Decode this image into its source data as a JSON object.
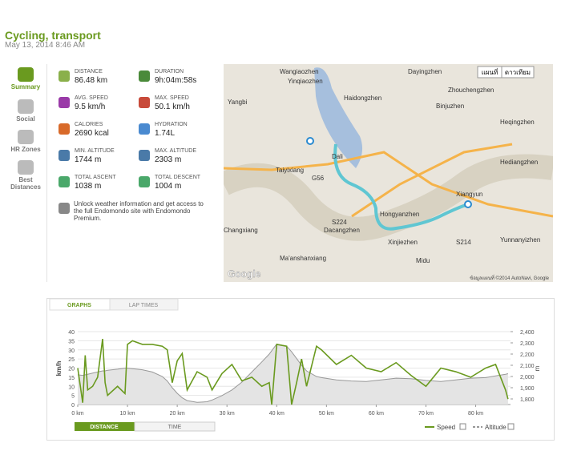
{
  "header": {
    "title": "Cycling, transport",
    "date": "May 13, 2014 8:46 AM"
  },
  "sidebar": [
    "Summary",
    "Social",
    "HR Zones",
    "Best Distances"
  ],
  "stats": [
    {
      "label": "DISTANCE",
      "value": "86.48 km"
    },
    {
      "label": "DURATION",
      "value": "9h:04m:58s"
    },
    {
      "label": "AVG. SPEED",
      "value": "9.5 km/h"
    },
    {
      "label": "MAX. SPEED",
      "value": "50.1 km/h"
    },
    {
      "label": "CALORIES",
      "value": "2690 kcal"
    },
    {
      "label": "HYDRATION",
      "value": "1.74L"
    },
    {
      "label": "MIN. ALTITUDE",
      "value": "1744 m"
    },
    {
      "label": "MAX. ALTITUDE",
      "value": "2303 m"
    },
    {
      "label": "TOTAL ASCENT",
      "value": "1038 m"
    },
    {
      "label": "TOTAL DESCENT",
      "value": "1004 m"
    }
  ],
  "premium": "Unlock weather information and get access to the full Endomondo site with Endomondo Premium.",
  "map": {
    "buttons": [
      "แผนที่",
      "ดาวเทียม"
    ],
    "labels": [
      "Wangiaozhen",
      "Yinqiaozhen",
      "Haidongzhen",
      "Dayingzhen",
      "Zhouchengzhen",
      "Binjuzhen",
      "Heqingzhen",
      "Yangbi",
      "Taiyixiang",
      "Dali",
      "Dacangzhen",
      "Hongyanzhen",
      "Xinjiezhen",
      "Xiangyun",
      "Midu",
      "Hediangzhen",
      "Yunnanyizhen",
      "Changxiang",
      "Ma'anshanxiang",
      "G56",
      "S214",
      "S224"
    ],
    "logo": "Google",
    "attribution": "ข้อมูลแผนที่ ©2014 AutoNavi, Google"
  },
  "tabs": [
    "GRAPHS",
    "LAP TIMES"
  ],
  "chart_data": {
    "type": "line",
    "y_label": "km/h",
    "y2_label": "m",
    "x": [
      0,
      1,
      1.5,
      2,
      3,
      4,
      5,
      5.5,
      6,
      8,
      9.5,
      10,
      11,
      13,
      15,
      17,
      18,
      19,
      20,
      21,
      22,
      24,
      26,
      27,
      29,
      31,
      33,
      35,
      37,
      38.5,
      39,
      40,
      42,
      43,
      44,
      45,
      46,
      48,
      49,
      52,
      55,
      58,
      61,
      64,
      67,
      70,
      73,
      76,
      79,
      82,
      84,
      86,
      86.5
    ],
    "series": [
      {
        "name": "Speed",
        "color": "#6a9a1f",
        "values": [
          20,
          1,
          27,
          8,
          10,
          15,
          36,
          12,
          5,
          10,
          6,
          33,
          35,
          33,
          33,
          32,
          30,
          12,
          24,
          28,
          8,
          18,
          15,
          8,
          17,
          22,
          13,
          15,
          10,
          12,
          0,
          33,
          32,
          0,
          12,
          25,
          10,
          32,
          30,
          22,
          27,
          20,
          18,
          23,
          16,
          10,
          20,
          18,
          15,
          20,
          22,
          8,
          3
        ]
      },
      {
        "name": "Altitude",
        "color": "#999999",
        "axis": "y2",
        "values": [
          2015,
          2010,
          2015,
          2020,
          2030,
          2040,
          2050,
          2050,
          2055,
          2065,
          2075,
          2075,
          2070,
          2060,
          2040,
          2000,
          1960,
          1900,
          1850,
          1810,
          1785,
          1770,
          1775,
          1790,
          1830,
          1880,
          1950,
          2040,
          2130,
          2200,
          2230,
          2290,
          2270,
          2220,
          2160,
          2100,
          2050,
          2000,
          1990,
          1970,
          1960,
          1955,
          1970,
          1985,
          1980,
          1965,
          1955,
          1970,
          1985,
          1990,
          2005,
          2020,
          2025
        ]
      }
    ],
    "xlim": [
      0,
      87
    ],
    "xticks": [
      {
        "value": 0,
        "label": "0 km"
      },
      {
        "value": 10,
        "label": "10 km"
      },
      {
        "value": 20,
        "label": "20 km"
      },
      {
        "value": 30,
        "label": "30 km"
      },
      {
        "value": 40,
        "label": "40 km"
      },
      {
        "value": 50,
        "label": "50 km"
      },
      {
        "value": 60,
        "label": "60 km"
      },
      {
        "value": 70,
        "label": "70 km"
      },
      {
        "value": 80,
        "label": "80 km"
      }
    ],
    "ylim": [
      0,
      40
    ],
    "yticks": [
      0,
      5,
      10,
      15,
      20,
      25,
      30,
      35,
      40
    ],
    "y2lim": [
      1750,
      2400
    ],
    "y2ticks": [
      {
        "value": 1800,
        "label": "1,800"
      },
      {
        "value": 1900,
        "label": "1,900"
      },
      {
        "value": 2000,
        "label": "2,000"
      },
      {
        "value": 2100,
        "label": "2,100"
      },
      {
        "value": 2200,
        "label": "2,200"
      },
      {
        "value": 2300,
        "label": "2,300"
      },
      {
        "value": 2400,
        "label": "2,400"
      }
    ],
    "grid": true
  },
  "view_toggle": [
    "DISTANCE",
    "TIME"
  ]
}
